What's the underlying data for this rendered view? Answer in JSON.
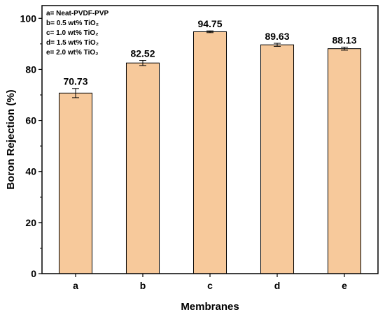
{
  "chart_data": {
    "type": "bar",
    "categories": [
      "a",
      "b",
      "c",
      "d",
      "e"
    ],
    "values": [
      70.73,
      82.52,
      94.75,
      89.63,
      88.13
    ],
    "errors": [
      1.8,
      1.0,
      0.35,
      0.6,
      0.6
    ],
    "data_labels": [
      "70.73",
      "82.52",
      "94.75",
      "89.63",
      "88.13"
    ],
    "title": "",
    "xlabel": "Membranes",
    "ylabel": "Boron Rejection (%)",
    "ylim": [
      0,
      105
    ],
    "yticks": [
      0,
      20,
      40,
      60,
      80,
      100
    ],
    "grid": false,
    "legend": {
      "placement": "top-left",
      "entries": [
        "a= Neat-PVDF-PVP",
        "b= 0.5 wt% TiO₂",
        "c= 1.0 wt% TiO₂",
        "d= 1.5 wt% TiO₂",
        "e= 2.0 wt% TiO₂"
      ]
    },
    "colors": {
      "bar_fill": "#f7c99b",
      "bar_stroke": "#000000",
      "axis": "#000000"
    }
  }
}
